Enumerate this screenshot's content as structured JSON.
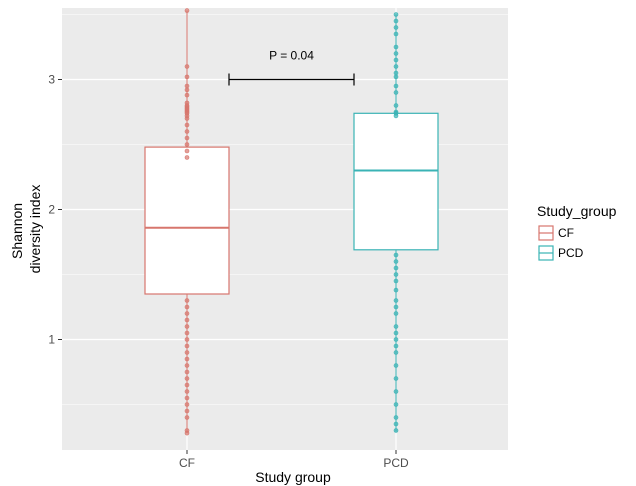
{
  "chart_data": {
    "type": "box",
    "xlabel": "Study group",
    "ylabel": [
      "Shannon",
      "diversity index"
    ],
    "categories": [
      "CF",
      "PCD"
    ],
    "y_ticks": [
      "1",
      "2",
      "3"
    ],
    "ylim": [
      0.15,
      3.55
    ],
    "grid": true,
    "legend": {
      "title": "Study_group",
      "placement": "right",
      "entries": [
        "CF",
        "PCD"
      ]
    },
    "annotation": {
      "text": "P = 0.04",
      "between": [
        "CF",
        "PCD"
      ],
      "y": 3.0
    },
    "colors": {
      "CF": "#d7766d",
      "PCD": "#3ab3b5",
      "panel": "#ebebeb",
      "grid": "#ffffff"
    },
    "boxes": [
      {
        "group": "CF",
        "q1": 1.35,
        "median": 1.86,
        "q3": 2.48,
        "whisker_low": 0.28,
        "whisker_high": 3.53
      },
      {
        "group": "PCD",
        "q1": 1.69,
        "median": 2.3,
        "q3": 2.74,
        "whisker_low": 0.29,
        "whisker_high": 3.5
      }
    ],
    "points": {
      "CF": [
        3.53,
        3.1,
        3.02,
        2.95,
        2.92,
        2.88,
        2.82,
        2.8,
        2.79,
        2.78,
        2.77,
        2.76,
        2.75,
        2.74,
        2.72,
        2.7,
        2.65,
        2.6,
        2.55,
        2.5,
        2.45,
        2.4,
        1.3,
        1.25,
        1.2,
        1.15,
        1.1,
        1.05,
        1.0,
        0.95,
        0.9,
        0.85,
        0.8,
        0.75,
        0.7,
        0.65,
        0.6,
        0.55,
        0.5,
        0.45,
        0.4,
        0.3,
        0.28
      ],
      "PCD": [
        3.5,
        3.45,
        3.4,
        3.35,
        3.25,
        3.2,
        3.15,
        3.1,
        3.05,
        3.02,
        2.95,
        2.9,
        2.8,
        2.75,
        2.74,
        2.72,
        1.65,
        1.6,
        1.55,
        1.5,
        1.45,
        1.38,
        1.3,
        1.25,
        1.2,
        1.1,
        1.05,
        1.0,
        0.95,
        0.9,
        0.8,
        0.7,
        0.6,
        0.5,
        0.4,
        0.35,
        0.3
      ]
    }
  }
}
